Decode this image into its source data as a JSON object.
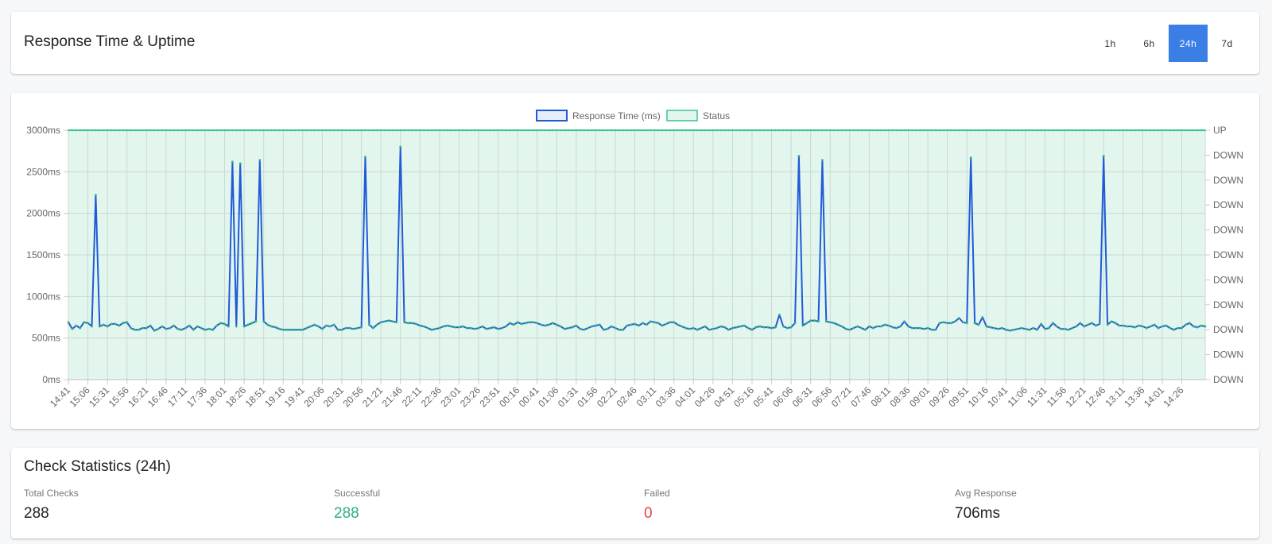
{
  "header": {
    "title": "Response Time & Uptime",
    "ranges": [
      {
        "label": "1h",
        "active": false
      },
      {
        "label": "6h",
        "active": false
      },
      {
        "label": "24h",
        "active": true
      },
      {
        "label": "7d",
        "active": false
      }
    ]
  },
  "stats": {
    "title": "Check Statistics (24h)",
    "items": [
      {
        "label": "Total Checks",
        "value": "288",
        "color": "#222222"
      },
      {
        "label": "Successful",
        "value": "288",
        "color": "#2bb07a"
      },
      {
        "label": "Failed",
        "value": "0",
        "color": "#e8404a"
      },
      {
        "label": "Avg Response",
        "value": "706ms",
        "color": "#222222"
      }
    ]
  },
  "colors": {
    "accent": "#3b7ee6",
    "response_line": "#1f5ad8",
    "status_line": "#3cc48f",
    "status_fill": "#e3f6ee",
    "success": "#2bb07a",
    "failure": "#e8404a"
  },
  "chart_data": {
    "type": "line",
    "title": "",
    "legend": [
      "Response Time (ms)",
      "Status"
    ],
    "legend_position": "top",
    "grid": true,
    "ylabel": "",
    "xlabel": "",
    "ylim": [
      0,
      3000
    ],
    "y_ticks": [
      "0ms",
      "500ms",
      "1000ms",
      "1500ms",
      "2000ms",
      "2500ms",
      "3000ms"
    ],
    "y2_ticks": [
      "DOWN",
      "DOWN",
      "DOWN",
      "DOWN",
      "DOWN",
      "DOWN",
      "DOWN",
      "DOWN",
      "DOWN",
      "DOWN",
      "UP"
    ],
    "x_tick_labels": [
      "14:41",
      "15:06",
      "15:31",
      "15:56",
      "16:21",
      "16:46",
      "17:11",
      "17:36",
      "18:01",
      "18:26",
      "18:51",
      "19:16",
      "19:41",
      "20:06",
      "20:31",
      "20:56",
      "21:21",
      "21:46",
      "22:11",
      "22:36",
      "23:01",
      "23:26",
      "23:51",
      "00:16",
      "00:41",
      "01:06",
      "01:31",
      "01:56",
      "02:21",
      "02:46",
      "03:11",
      "03:36",
      "04:01",
      "04:26",
      "04:51",
      "05:16",
      "05:41",
      "06:06",
      "06:31",
      "06:56",
      "07:21",
      "07:46",
      "08:11",
      "08:36",
      "09:01",
      "09:26",
      "09:51",
      "10:16",
      "10:41",
      "11:06",
      "11:31",
      "11:56",
      "12:21",
      "12:46",
      "13:11",
      "13:36",
      "14:01",
      "14:26"
    ],
    "point_count": 288,
    "interval_minutes": 5,
    "spikes": [
      {
        "index": 7,
        "value": 2220
      },
      {
        "index": 42,
        "value": 2620
      },
      {
        "index": 44,
        "value": 2600
      },
      {
        "index": 49,
        "value": 2640
      },
      {
        "index": 76,
        "value": 2680
      },
      {
        "index": 85,
        "value": 2800
      },
      {
        "index": 188,
        "value": 2690
      },
      {
        "index": 193,
        "value": 2640
      },
      {
        "index": 228,
        "value": 2670
      },
      {
        "index": 264,
        "value": 2690
      }
    ],
    "baseline_range_ms": [
      580,
      780
    ],
    "series": [
      {
        "name": "Response Time (ms)",
        "values": [
          690,
          610,
          650,
          620,
          690,
          680,
          640,
          2220,
          640,
          660,
          640,
          670,
          670,
          650,
          680,
          690,
          620,
          600,
          600,
          620,
          620,
          650,
          590,
          610,
          640,
          610,
          620,
          650,
          610,
          600,
          620,
          650,
          600,
          640,
          620,
          600,
          610,
          600,
          650,
          680,
          670,
          640,
          2620,
          640,
          2600,
          640,
          660,
          680,
          700,
          2640,
          700,
          660,
          640,
          630,
          610,
          600,
          600,
          600,
          600,
          600,
          600,
          620,
          640,
          660,
          640,
          610,
          650,
          640,
          660,
          600,
          600,
          620,
          620,
          610,
          620,
          630,
          2680,
          660,
          620,
          660,
          690,
          700,
          710,
          700,
          690,
          2800,
          690,
          680,
          680,
          670,
          650,
          640,
          620,
          600,
          610,
          620,
          640,
          650,
          640,
          630,
          630,
          640,
          620,
          620,
          610,
          620,
          640,
          610,
          620,
          630,
          610,
          620,
          640,
          680,
          660,
          690,
          670,
          680,
          690,
          690,
          680,
          660,
          650,
          660,
          680,
          660,
          640,
          610,
          620,
          630,
          650,
          610,
          600,
          620,
          640,
          650,
          660,
          600,
          610,
          640,
          620,
          600,
          600,
          650,
          660,
          670,
          650,
          680,
          660,
          700,
          690,
          680,
          650,
          670,
          690,
          690,
          660,
          640,
          620,
          610,
          620,
          600,
          620,
          640,
          600,
          610,
          620,
          640,
          630,
          600,
          620,
          630,
          640,
          650,
          620,
          600,
          630,
          640,
          630,
          630,
          620,
          630,
          780,
          640,
          620,
          630,
          680,
          2690,
          650,
          680,
          710,
          710,
          700,
          2640,
          700,
          690,
          680,
          660,
          640,
          610,
          600,
          620,
          640,
          620,
          600,
          640,
          620,
          640,
          640,
          660,
          650,
          630,
          620,
          640,
          700,
          640,
          620,
          620,
          620,
          610,
          620,
          600,
          600,
          680,
          690,
          680,
          680,
          700,
          740,
          690,
          680,
          2670,
          680,
          660,
          750,
          640,
          630,
          620,
          610,
          620,
          600,
          590,
          600,
          610,
          620,
          610,
          600,
          620,
          600,
          670,
          610,
          620,
          680,
          640,
          610,
          610,
          600,
          620,
          640,
          680,
          640,
          660,
          680,
          650,
          670,
          2690,
          660,
          700,
          680,
          650,
          650,
          640,
          640,
          630,
          650,
          640,
          620,
          640,
          660,
          620,
          640,
          650,
          620,
          600,
          620,
          620,
          660,
          680,
          640,
          630,
          650,
          640
        ]
      },
      {
        "name": "Status",
        "values": "UP for all 288 checks"
      }
    ]
  }
}
